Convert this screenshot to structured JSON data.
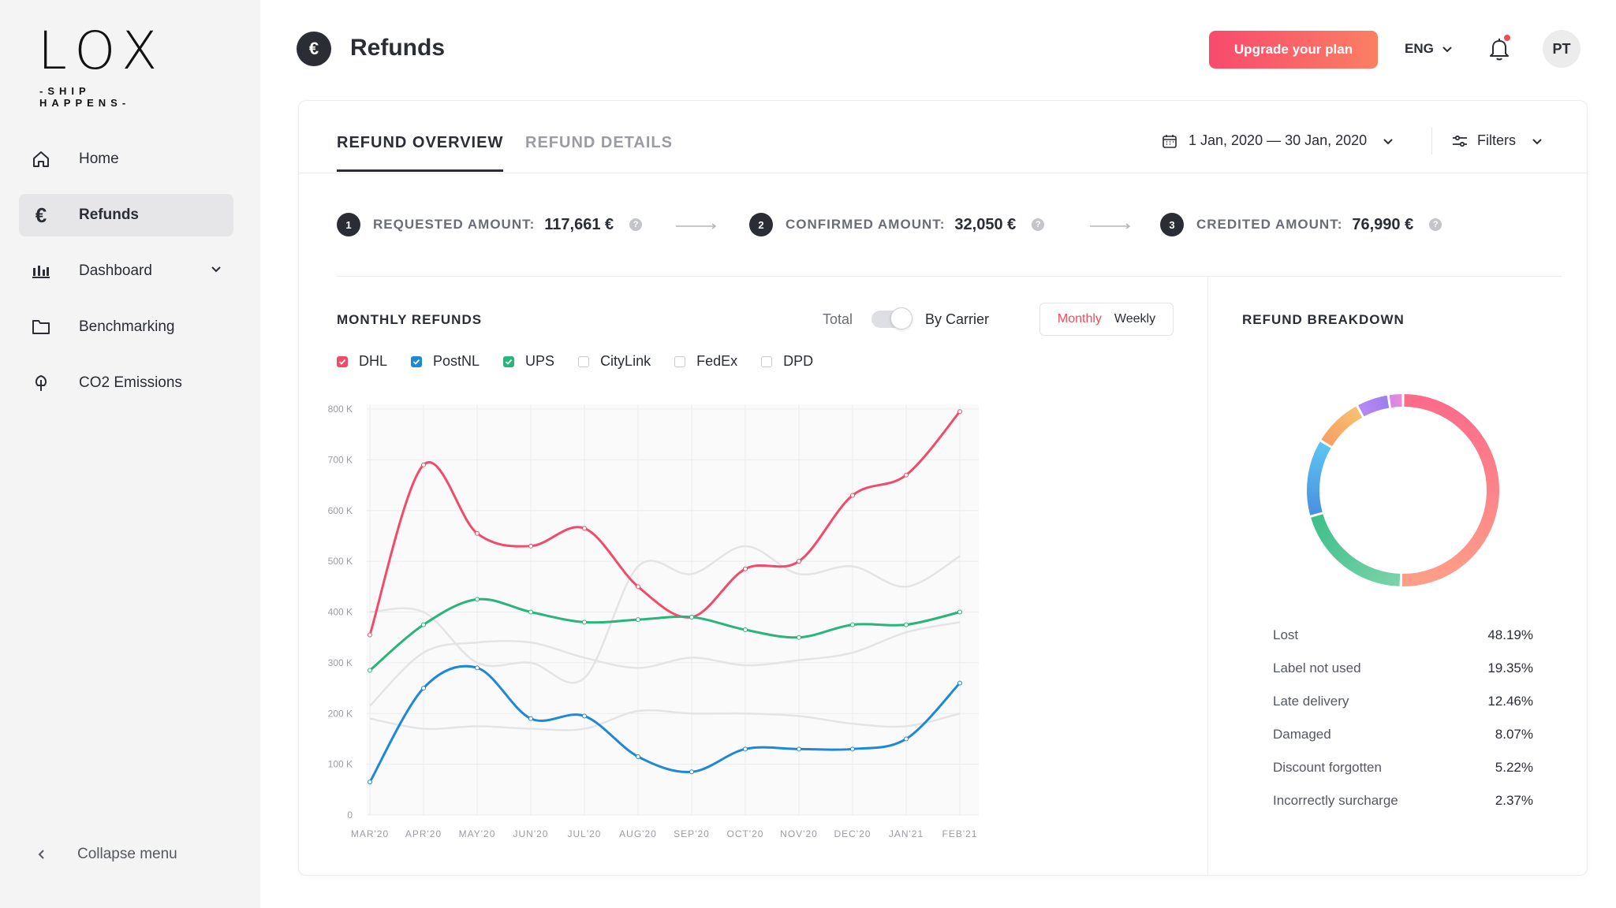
{
  "brand": {
    "logo_word": "LOX",
    "tagline": "-SHIP HAPPENS-"
  },
  "sidebar": {
    "items": [
      {
        "label": "Home",
        "icon": "home-icon",
        "active": false
      },
      {
        "label": "Refunds",
        "icon": "euro-icon",
        "active": true
      },
      {
        "label": "Dashboard",
        "icon": "bar-chart-icon",
        "active": false,
        "expandable": true
      },
      {
        "label": "Benchmarking",
        "icon": "folder-icon",
        "active": false
      },
      {
        "label": "CO2 Emissions",
        "icon": "leaf-icon",
        "active": false
      }
    ],
    "collapse_label": "Collapse menu"
  },
  "header": {
    "title": "Refunds",
    "title_icon": "€",
    "upgrade_label": "Upgrade your plan",
    "language": "ENG",
    "avatar_initials": "PT",
    "has_notification": true
  },
  "tabs": [
    {
      "label": "REFUND OVERVIEW",
      "active": true
    },
    {
      "label": "REFUND DETAILS",
      "active": false
    }
  ],
  "date_range": "1 Jan, 2020 — 30 Jan, 2020",
  "filters_label": "Filters",
  "steps": [
    {
      "num": "1",
      "label": "REQUESTED AMOUNT:",
      "value": "117,661 €"
    },
    {
      "num": "2",
      "label": "CONFIRMED AMOUNT:",
      "value": "32,050 €"
    },
    {
      "num": "3",
      "label": "CREDITED AMOUNT:",
      "value": "76,990 €"
    }
  ],
  "monthly": {
    "title": "MONTHLY REFUNDS",
    "toggle_left": "Total",
    "toggle_right": "By Carrier",
    "period_monthly": "Monthly",
    "period_weekly": "Weekly",
    "legend": [
      {
        "name": "DHL",
        "checked": true,
        "color": "#f24b6a"
      },
      {
        "name": "PostNL",
        "checked": true,
        "color": "#1e88d8"
      },
      {
        "name": "UPS",
        "checked": true,
        "color": "#28b47a"
      },
      {
        "name": "CityLink",
        "checked": false,
        "color": "#d9d9dc"
      },
      {
        "name": "FedEx",
        "checked": false,
        "color": "#d9d9dc"
      },
      {
        "name": "DPD",
        "checked": false,
        "color": "#d9d9dc"
      }
    ]
  },
  "chart_data": {
    "type": "line",
    "categories": [
      "MAR'20",
      "APR'20",
      "MAY'20",
      "JUN'20",
      "JUL'20",
      "AUG'20",
      "SEP'20",
      "OCT'20",
      "NOV'20",
      "DEC'20",
      "JAN'21",
      "FEB'21"
    ],
    "y_ticks": [
      "0",
      "100 K",
      "200 K",
      "300 K",
      "400 K",
      "500 K",
      "600 K",
      "700 K",
      "800 K"
    ],
    "ylim": [
      0,
      800000
    ],
    "series": [
      {
        "name": "DHL",
        "color": "#f24b6a",
        "values": [
          355000,
          690000,
          555000,
          530000,
          565000,
          450000,
          390000,
          485000,
          500000,
          630000,
          670000,
          795000
        ]
      },
      {
        "name": "UPS",
        "color": "#28b47a",
        "values": [
          285000,
          375000,
          425000,
          400000,
          380000,
          385000,
          390000,
          365000,
          350000,
          375000,
          375000,
          400000
        ]
      },
      {
        "name": "PostNL",
        "color": "#1e88d8",
        "values": [
          65000,
          250000,
          290000,
          190000,
          195000,
          115000,
          85000,
          130000,
          130000,
          130000,
          150000,
          260000
        ]
      },
      {
        "name": "CityLink",
        "color": "#e4e4e6",
        "values": [
          400000,
          400000,
          300000,
          300000,
          270000,
          490000,
          475000,
          530000,
          475000,
          490000,
          450000,
          510000
        ]
      },
      {
        "name": "FedEx",
        "color": "#e4e4e6",
        "values": [
          215000,
          320000,
          340000,
          340000,
          310000,
          290000,
          310000,
          295000,
          305000,
          320000,
          360000,
          380000
        ]
      },
      {
        "name": "DPD",
        "color": "#e4e4e6",
        "values": [
          190000,
          170000,
          175000,
          170000,
          170000,
          205000,
          200000,
          200000,
          195000,
          180000,
          175000,
          200000
        ]
      }
    ]
  },
  "breakdown": {
    "title": "REFUND BREAKDOWN",
    "items": [
      {
        "label": "Lost",
        "value": "48.19%",
        "pct": 48.19,
        "colors": [
          "#fc6b8a",
          "#fd9e88"
        ]
      },
      {
        "label": "Label not used",
        "value": "19.35%",
        "pct": 19.35,
        "colors": [
          "#7bd3a9",
          "#3fbf8b"
        ]
      },
      {
        "label": "Late delivery",
        "value": "12.46%",
        "pct": 12.46,
        "colors": [
          "#4a90e2",
          "#5cc5f0"
        ]
      },
      {
        "label": "Damaged",
        "value": "8.07%",
        "pct": 8.07,
        "colors": [
          "#f7a064",
          "#f7c070"
        ]
      },
      {
        "label": "Discount forgotten",
        "value": "5.22%",
        "pct": 5.22,
        "colors": [
          "#b988f0",
          "#9b7ff0"
        ]
      },
      {
        "label": "Incorrectly surcharge",
        "value": "2.37%",
        "pct": 2.37,
        "colors": [
          "#d882e8",
          "#e58fd8"
        ]
      }
    ]
  }
}
